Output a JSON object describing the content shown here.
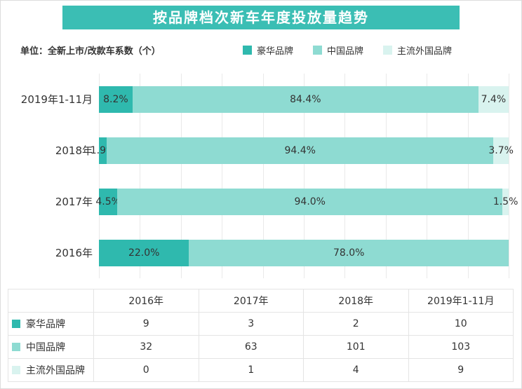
{
  "title": "按品牌档次新车年度投放量趋势",
  "unit_label": "单位：全新上市/改款车系数（个）",
  "colors": {
    "banner": "#3bbeb4",
    "luxury": "#2fb9ae",
    "china": "#8edbd2",
    "foreign": "#d9f3ef",
    "grid": "#e9e9e9",
    "text": "#333333"
  },
  "legend": [
    {
      "label": "豪华品牌",
      "color_key": "luxury"
    },
    {
      "label": "中国品牌",
      "color_key": "china"
    },
    {
      "label": "主流外国品牌",
      "color_key": "foreign"
    }
  ],
  "chart_data": {
    "type": "bar",
    "orientation": "horizontal",
    "stacked": true,
    "units": "percent",
    "xlim": [
      0,
      100
    ],
    "grid": "vertical, every 10%",
    "legend_position": "top-right",
    "categories": [
      "2019年1-11月",
      "2018年",
      "2017年",
      "2016年"
    ],
    "series": [
      {
        "name": "豪华品牌",
        "values": [
          8.2,
          1.9,
          4.5,
          22.0
        ]
      },
      {
        "name": "中国品牌",
        "values": [
          84.4,
          94.4,
          94.0,
          78.0
        ]
      },
      {
        "name": "主流外国品牌",
        "values": [
          7.4,
          3.7,
          1.5,
          0.0
        ]
      }
    ],
    "bar_labels": [
      [
        "8.2%",
        "84.4%",
        "7.4%"
      ],
      [
        "1.9%",
        "94.4%",
        "3.7%"
      ],
      [
        "4.5%",
        "94.0%",
        "1.5%"
      ],
      [
        "22.0%",
        "78.0%",
        ""
      ]
    ]
  },
  "table": {
    "corner_label": "",
    "columns": [
      "2016年",
      "2017年",
      "2018年",
      "2019年1-11月"
    ],
    "rows": [
      {
        "name": "豪华品牌",
        "color_key": "luxury",
        "values": [
          "9",
          "3",
          "2",
          "10"
        ]
      },
      {
        "name": "中国品牌",
        "color_key": "china",
        "values": [
          "32",
          "63",
          "101",
          "103"
        ]
      },
      {
        "name": "主流外国品牌",
        "color_key": "foreign",
        "values": [
          "0",
          "1",
          "4",
          "9"
        ]
      }
    ]
  }
}
